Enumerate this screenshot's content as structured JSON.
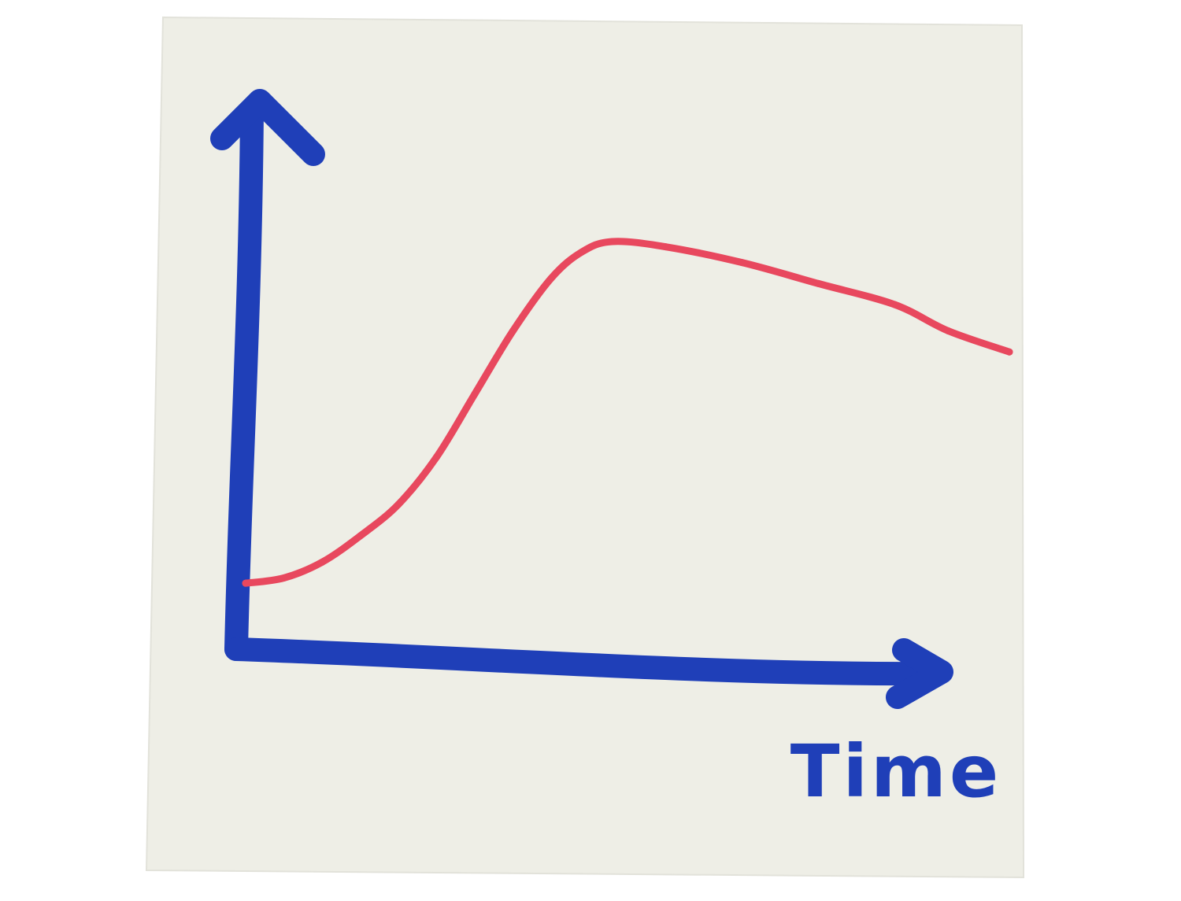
{
  "colors": {
    "background": "#ffffff",
    "paper": "#eeeee6",
    "axis": "#1f3fb8",
    "series": "#e8485e"
  },
  "chart_data": {
    "type": "line",
    "title": "",
    "xlabel": "Time",
    "ylabel": "",
    "ticks": "none",
    "grid": false,
    "legend": "none",
    "xlim": [
      0,
      100
    ],
    "ylim": [
      0,
      100
    ],
    "series": [
      {
        "points": [
          [
            0,
            13
          ],
          [
            5,
            14
          ],
          [
            10,
            17
          ],
          [
            15,
            22
          ],
          [
            20,
            28
          ],
          [
            25,
            37
          ],
          [
            30,
            49
          ],
          [
            35,
            61
          ],
          [
            40,
            71
          ],
          [
            44,
            76
          ],
          [
            48,
            78
          ],
          [
            55,
            77
          ],
          [
            65,
            74
          ],
          [
            75,
            70
          ],
          [
            85,
            66
          ],
          [
            92,
            61
          ],
          [
            100,
            57
          ]
        ]
      }
    ]
  }
}
